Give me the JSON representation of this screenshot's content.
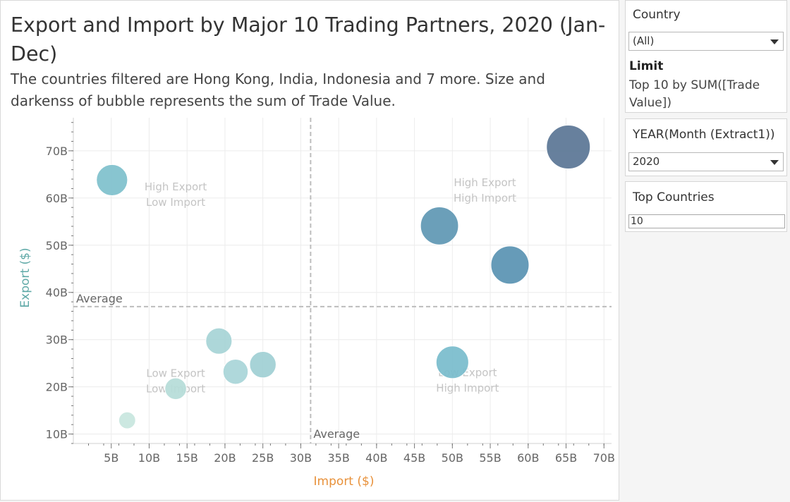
{
  "title": "Export and Import by Major 10 Trading Partners, 2020 (Jan-Dec)",
  "subtitle": "The countries filtered are Hong Kong, India, Indonesia and 7 more. Size and darkenss of bubble represents the sum of Trade Value.",
  "filters": {
    "country": {
      "title": "Country",
      "value": "(All)",
      "limit_label": "Limit",
      "limit_text": "Top 10 by SUM([Trade Value])"
    },
    "year": {
      "title": "YEAR(Month (Extract1))",
      "value": "2020"
    },
    "top": {
      "title": "Top Countries",
      "value": "10"
    }
  },
  "chart_data": {
    "type": "scatter",
    "xlabel": "Import ($)",
    "ylabel": "Export ($)",
    "xlim": [
      0,
      71
    ],
    "ylim": [
      8,
      77
    ],
    "x_ticks": [
      {
        "v": 5,
        "label": "5B"
      },
      {
        "v": 10,
        "label": "10B"
      },
      {
        "v": 15,
        "label": "15B"
      },
      {
        "v": 20,
        "label": "20B"
      },
      {
        "v": 25,
        "label": "25B"
      },
      {
        "v": 30,
        "label": "30B"
      },
      {
        "v": 35,
        "label": "35B"
      },
      {
        "v": 40,
        "label": "40B"
      },
      {
        "v": 45,
        "label": "45B"
      },
      {
        "v": 50,
        "label": "50B"
      },
      {
        "v": 55,
        "label": "55B"
      },
      {
        "v": 60,
        "label": "60B"
      },
      {
        "v": 65,
        "label": "65B"
      },
      {
        "v": 70,
        "label": "70B"
      }
    ],
    "y_ticks": [
      {
        "v": 10,
        "label": "10B"
      },
      {
        "v": 20,
        "label": "20B"
      },
      {
        "v": 30,
        "label": "30B"
      },
      {
        "v": 40,
        "label": "40B"
      },
      {
        "v": 50,
        "label": "50B"
      },
      {
        "v": 60,
        "label": "60B"
      },
      {
        "v": 70,
        "label": "70B"
      }
    ],
    "points": [
      {
        "x": 5.1,
        "y": 63.8,
        "value": 68.9,
        "color": "#7ec0cc"
      },
      {
        "x": 7.1,
        "y": 12.9,
        "value": 20.0,
        "color": "#c8e6de"
      },
      {
        "x": 13.5,
        "y": 19.6,
        "value": 33.1,
        "color": "#b5dcd8"
      },
      {
        "x": 19.2,
        "y": 29.7,
        "value": 48.9,
        "color": "#a6d4d6"
      },
      {
        "x": 21.4,
        "y": 23.2,
        "value": 44.6,
        "color": "#a8d5d8"
      },
      {
        "x": 25.0,
        "y": 24.7,
        "value": 49.7,
        "color": "#9fcfd4"
      },
      {
        "x": 48.3,
        "y": 54.1,
        "value": 102.4,
        "color": "#5e97b3"
      },
      {
        "x": 50.0,
        "y": 25.2,
        "value": 75.2,
        "color": "#78bccc"
      },
      {
        "x": 57.6,
        "y": 45.8,
        "value": 103.4,
        "color": "#5993b2"
      },
      {
        "x": 65.3,
        "y": 70.8,
        "value": 136.1,
        "color": "#5a7595"
      }
    ],
    "averages": {
      "x": 31.3,
      "y": 37.0,
      "x_label": "Average",
      "y_label": "Average"
    },
    "quadrants": [
      {
        "x": 13.5,
        "y": 61.6,
        "lines": [
          "High Export",
          "Low Import"
        ]
      },
      {
        "x": 54.3,
        "y": 62.5,
        "lines": [
          "High Export",
          "High Import"
        ]
      },
      {
        "x": 13.5,
        "y": 22.1,
        "lines": [
          "Low Export",
          "Low Import"
        ]
      },
      {
        "x": 52.0,
        "y": 22.3,
        "lines": [
          "Low Export",
          "High Import"
        ]
      }
    ],
    "colors": {
      "xlabel": "#e8913a",
      "ylabel": "#5fa9a7",
      "grid": "#ececec",
      "avg": "#bdbdbd",
      "tick_text": "#666666",
      "quadrant_text": "#c4c4c4"
    }
  }
}
